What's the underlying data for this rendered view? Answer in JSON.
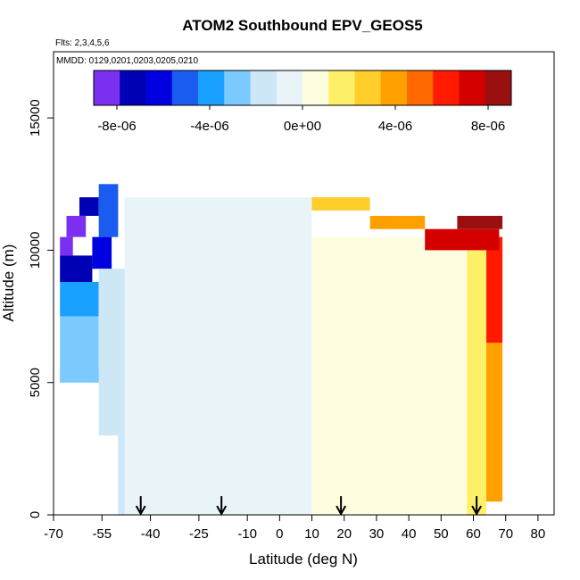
{
  "chart_data": {
    "type": "heatmap",
    "title": "ATOM2 Southbound EPV_GEOS5",
    "subtitle_flights": "Flts: 2,3,4,5,6",
    "subtitle_dates": "MMDD: 0129,0201,0203,0205,0210",
    "xlabel": "Latitude (deg N)",
    "ylabel": "Altitude (m)",
    "xlim": [
      -70,
      85
    ],
    "ylim": [
      0,
      17500
    ],
    "xticks": [
      -70,
      -55,
      -40,
      -25,
      -10,
      0,
      10,
      20,
      30,
      40,
      50,
      60,
      70,
      80
    ],
    "xtick_labels": [
      "-70",
      "-55",
      "-40",
      "-25",
      "-10",
      "0",
      "10",
      "20",
      "30",
      "40",
      "50",
      "60",
      "70",
      "80"
    ],
    "yticks": [
      0,
      5000,
      10000,
      15000
    ],
    "ytick_labels": [
      "0",
      "5000",
      "10000",
      "15000"
    ],
    "colorbar": {
      "range": [
        -9e-06,
        9e-06
      ],
      "tick_values": [
        -8e-06,
        -4e-06,
        0,
        4e-06,
        8e-06
      ],
      "tick_labels": [
        "-8e-06",
        "-4e-06",
        "0e+00",
        "4e-06",
        "8e-06"
      ],
      "colors": [
        "#7b2ff0",
        "#0000b4",
        "#0000e0",
        "#1a5cf0",
        "#1aa0ff",
        "#7ccaff",
        "#cde7f7",
        "#e9f4f9",
        "#fffde0",
        "#fff06a",
        "#ffce2a",
        "#ffa000",
        "#ff6a00",
        "#ff1a00",
        "#d40000",
        "#9a1010"
      ]
    },
    "flight_markers_lat": [
      -43,
      -18,
      19,
      61
    ],
    "field": [
      {
        "lat": [
          -68,
          -64
        ],
        "alt": [
          9800,
          10500
        ],
        "value": -8.5e-06
      },
      {
        "lat": [
          -66,
          -60
        ],
        "alt": [
          10500,
          11300
        ],
        "value": -8e-06
      },
      {
        "lat": [
          -62,
          -56
        ],
        "alt": [
          11300,
          12000
        ],
        "value": -7.5e-06
      },
      {
        "lat": [
          -68,
          -58
        ],
        "alt": [
          8800,
          9800
        ],
        "value": -7e-06
      },
      {
        "lat": [
          -58,
          -52
        ],
        "alt": [
          9300,
          10500
        ],
        "value": -6.5e-06
      },
      {
        "lat": [
          -56,
          -50
        ],
        "alt": [
          10500,
          12500
        ],
        "value": -5e-06
      },
      {
        "lat": [
          -68,
          -56
        ],
        "alt": [
          7500,
          8800
        ],
        "value": -4e-06
      },
      {
        "lat": [
          -68,
          -56
        ],
        "alt": [
          5000,
          7500
        ],
        "value": -3e-06
      },
      {
        "lat": [
          -68,
          -50
        ],
        "alt": [
          5000,
          5500
        ],
        "value": -3e-06
      },
      {
        "lat": [
          -56,
          -48
        ],
        "alt": [
          3000,
          9300
        ],
        "value": -1.5e-06
      },
      {
        "lat": [
          -50,
          -42
        ],
        "alt": [
          0,
          3000
        ],
        "value": -1.5e-06
      },
      {
        "lat": [
          -48,
          10
        ],
        "alt": [
          0,
          12000
        ],
        "value": -5e-07
      },
      {
        "lat": [
          10,
          45
        ],
        "alt": [
          0,
          10500
        ],
        "value": 2e-07
      },
      {
        "lat": [
          45,
          58
        ],
        "alt": [
          0,
          10500
        ],
        "value": 1e-06
      },
      {
        "lat": [
          58,
          64
        ],
        "alt": [
          0,
          10500
        ],
        "value": 2e-06
      },
      {
        "lat": [
          64,
          69
        ],
        "alt": [
          500,
          6500
        ],
        "value": 3.5e-06
      },
      {
        "lat": [
          64,
          69
        ],
        "alt": [
          6500,
          10500
        ],
        "value": 6e-06
      },
      {
        "lat": [
          10,
          28
        ],
        "alt": [
          11500,
          12000
        ],
        "value": 3e-06
      },
      {
        "lat": [
          28,
          45
        ],
        "alt": [
          10800,
          11300
        ],
        "value": 4e-06
      },
      {
        "lat": [
          45,
          68
        ],
        "alt": [
          10000,
          10800
        ],
        "value": 7.5e-06
      },
      {
        "lat": [
          55,
          69
        ],
        "alt": [
          10800,
          11300
        ],
        "value": 8.5e-06
      }
    ]
  }
}
